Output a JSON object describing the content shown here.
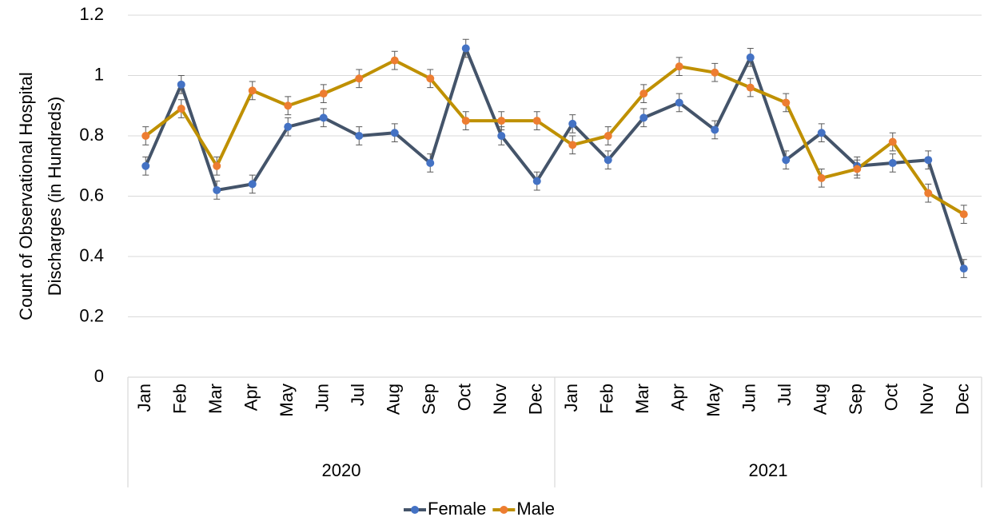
{
  "chart_data": {
    "type": "line",
    "ylabel": [
      "Count of Observational Hospital",
      "Discharges  (in Hundreds)"
    ],
    "categories": [
      "Jan",
      "Feb",
      "Mar",
      "Apr",
      "May",
      "Jun",
      "Jul",
      "Aug",
      "Sep",
      "Oct",
      "Nov",
      "Dec",
      "Jan",
      "Feb",
      "Mar",
      "Apr",
      "May",
      "Jun",
      "Jul",
      "Aug",
      "Sep",
      "Oct",
      "Nov",
      "Dec"
    ],
    "years": [
      "2020",
      "2021"
    ],
    "series": [
      {
        "name": "Female",
        "color": "#44546a",
        "marker_color": "#4472c4",
        "error": 0.03,
        "values": [
          0.7,
          0.97,
          0.62,
          0.64,
          0.83,
          0.86,
          0.8,
          0.81,
          0.71,
          1.09,
          0.8,
          0.65,
          0.84,
          0.72,
          0.86,
          0.91,
          0.82,
          1.06,
          0.72,
          0.81,
          0.7,
          0.71,
          0.72,
          0.36
        ]
      },
      {
        "name": "Male",
        "color": "#bf9000",
        "marker_color": "#ed7d31",
        "error": 0.03,
        "values": [
          0.8,
          0.89,
          0.7,
          0.95,
          0.9,
          0.94,
          0.99,
          1.05,
          0.99,
          0.85,
          0.85,
          0.85,
          0.77,
          0.8,
          0.94,
          1.03,
          1.01,
          0.96,
          0.91,
          0.66,
          0.69,
          0.78,
          0.61,
          0.54
        ]
      }
    ],
    "ylim": [
      0,
      1.2
    ],
    "yticks": [
      0,
      0.2,
      0.4,
      0.6,
      0.8,
      1,
      1.2
    ],
    "grid": true,
    "legend": "bottom"
  }
}
